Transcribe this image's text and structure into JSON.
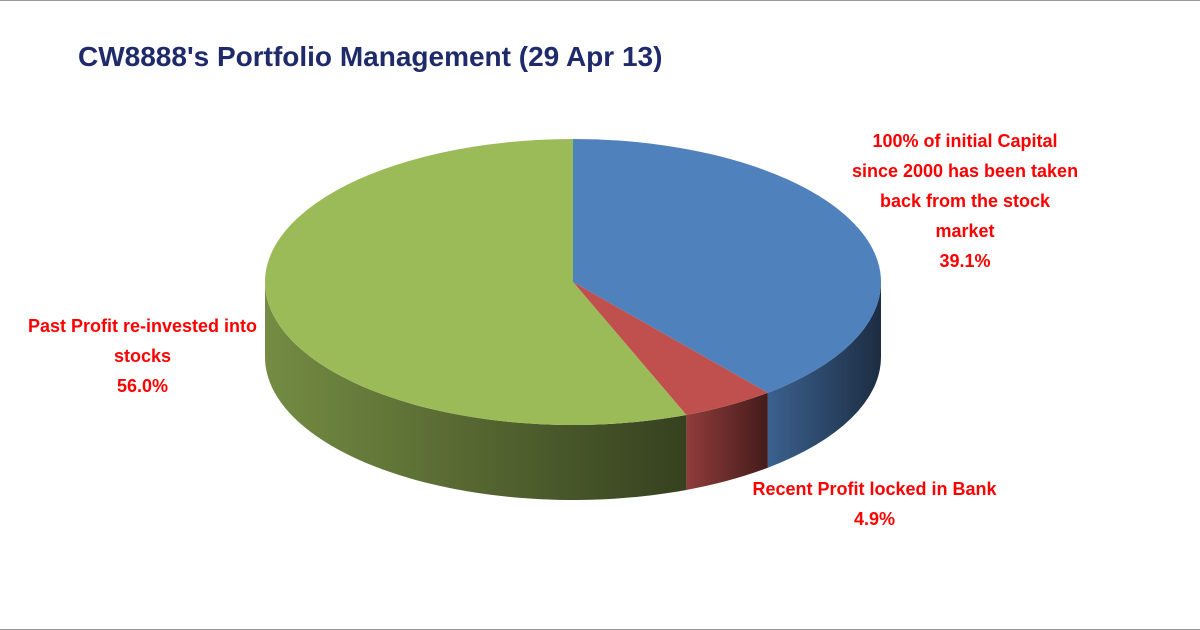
{
  "chart_data": {
    "type": "pie3d",
    "title": "CW8888's Portfolio Management (29 Apr 13)",
    "categories": [
      "100% of initial Capital since 2000 has been taken back from the stock market",
      "Recent Profit locked in Bank",
      "Past Profit re-invested into stocks"
    ],
    "values": [
      39.1,
      4.9,
      56.0
    ],
    "value_labels": [
      "39.1%",
      "4.9%",
      "56.0%"
    ],
    "colors": [
      "#4f81bd",
      "#c0504d",
      "#9bbb59"
    ]
  }
}
